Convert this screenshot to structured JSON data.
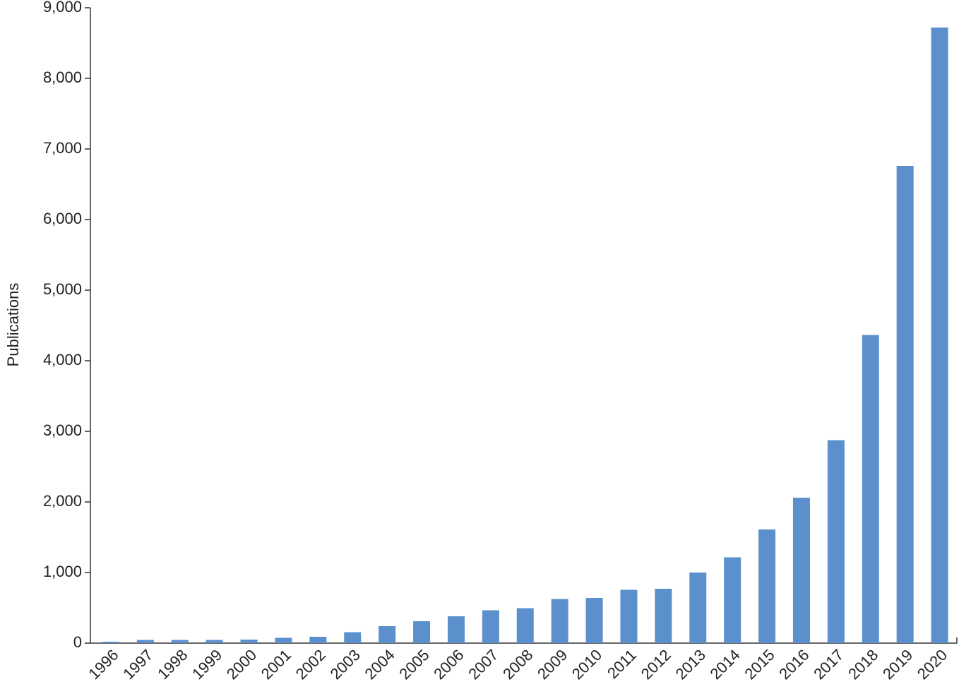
{
  "chart_data": {
    "type": "bar",
    "y_label": "Publications",
    "categories": [
      "1996",
      "1997",
      "1998",
      "1999",
      "2000",
      "2001",
      "2002",
      "2003",
      "2004",
      "2005",
      "2006",
      "2007",
      "2008",
      "2009",
      "2010",
      "2011",
      "2012",
      "2013",
      "2014",
      "2015",
      "2016",
      "2017",
      "2018",
      "2019",
      "2020"
    ],
    "values": [
      20,
      45,
      45,
      45,
      50,
      75,
      90,
      155,
      240,
      310,
      380,
      465,
      495,
      625,
      640,
      755,
      770,
      1000,
      1215,
      1610,
      2060,
      2875,
      4365,
      6760,
      8720
    ],
    "color": "#5b90cc",
    "ylim": [
      0,
      9000
    ],
    "yticks": [
      0,
      {
        "value": 1000,
        "label": "1,000"
      },
      {
        "value": 2000,
        "label": "2,000"
      },
      {
        "value": 3000,
        "label": "3,000"
      },
      {
        "value": 4000,
        "label": "4,000"
      },
      {
        "value": 5000,
        "label": "5,000"
      },
      {
        "value": 6000,
        "label": "6,000"
      },
      {
        "value": 7000,
        "label": "7,000"
      },
      {
        "value": 8000,
        "label": "8,000"
      },
      {
        "value": 9000,
        "label": "9,000"
      }
    ],
    "grid": false
  }
}
